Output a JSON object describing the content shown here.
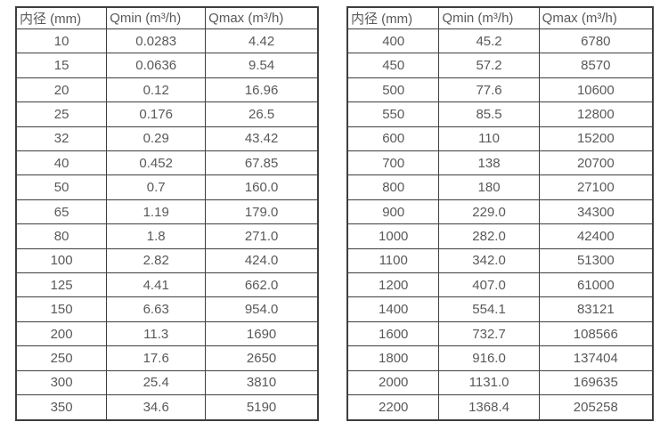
{
  "styles": {
    "border_color": "#3e3e3e",
    "text_color": "#595959",
    "background_color": "#ffffff"
  },
  "chart_data": [
    {
      "type": "table",
      "name": "flow-range-table-small-diameters",
      "columns": [
        "内径 (mm)",
        "Qmin (m³/h)",
        "Qmax (m³/h)"
      ],
      "rows": [
        [
          "10",
          "0.0283",
          "4.42"
        ],
        [
          "15",
          "0.0636",
          "9.54"
        ],
        [
          "20",
          "0.12",
          "16.96"
        ],
        [
          "25",
          "0.176",
          "26.5"
        ],
        [
          "32",
          "0.29",
          "43.42"
        ],
        [
          "40",
          "0.452",
          "67.85"
        ],
        [
          "50",
          "0.7",
          "160.0"
        ],
        [
          "65",
          "1.19",
          "179.0"
        ],
        [
          "80",
          "1.8",
          "271.0"
        ],
        [
          "100",
          "2.82",
          "424.0"
        ],
        [
          "125",
          "4.41",
          "662.0"
        ],
        [
          "150",
          "6.63",
          "954.0"
        ],
        [
          "200",
          "11.3",
          "1690"
        ],
        [
          "250",
          "17.6",
          "2650"
        ],
        [
          "300",
          "25.4",
          "3810"
        ],
        [
          "350",
          "34.6",
          "5190"
        ]
      ]
    },
    {
      "type": "table",
      "name": "flow-range-table-large-diameters",
      "columns": [
        "内径 (mm)",
        "Qmin (m³/h)",
        "Qmax (m³/h)"
      ],
      "rows": [
        [
          "400",
          "45.2",
          "6780"
        ],
        [
          "450",
          "57.2",
          "8570"
        ],
        [
          "500",
          "77.6",
          "10600"
        ],
        [
          "550",
          "85.5",
          "12800"
        ],
        [
          "600",
          "110",
          "15200"
        ],
        [
          "700",
          "138",
          "20700"
        ],
        [
          "800",
          "180",
          "27100"
        ],
        [
          "900",
          "229.0",
          "34300"
        ],
        [
          "1000",
          "282.0",
          "42400"
        ],
        [
          "1100",
          "342.0",
          "51300"
        ],
        [
          "1200",
          "407.0",
          "61000"
        ],
        [
          "1400",
          "554.1",
          "83121"
        ],
        [
          "1600",
          "732.7",
          "108566"
        ],
        [
          "1800",
          "916.0",
          "137404"
        ],
        [
          "2000",
          "1131.0",
          "169635"
        ],
        [
          "2200",
          "1368.4",
          "205258"
        ]
      ]
    }
  ]
}
